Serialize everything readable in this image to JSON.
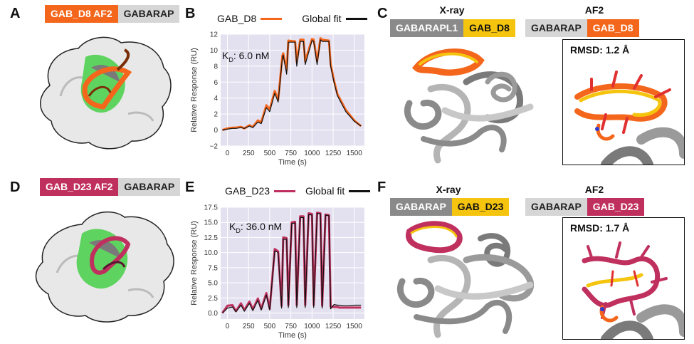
{
  "colors": {
    "orange": "#f4661b",
    "crimson": "#c0305e",
    "gold": "#f5c40f",
    "gray_tag": "#d6d6d6",
    "dark_gray_tag": "#8a8a8a",
    "plot_bg": "#e3e1f0",
    "green": "#5fd35f"
  },
  "panel_a": {
    "letter": "A",
    "tag_left": "GAB_D8 AF2",
    "tag_right": "GABARAP"
  },
  "panel_d": {
    "letter": "D",
    "tag_left": "GAB_D23 AF2",
    "tag_right": "GABARAP"
  },
  "panel_b": {
    "letter": "B",
    "legend_series": "GAB_D8",
    "legend_fit": "Global fit",
    "kd_label": "K",
    "kd_sub": "D",
    "kd_value": ": 6.0 nM"
  },
  "panel_e": {
    "letter": "E",
    "legend_series": "GAB_D23",
    "legend_fit": "Global fit",
    "kd_label": "K",
    "kd_sub": "D",
    "kd_value": ": 36.0 nM"
  },
  "panel_c": {
    "letter": "C",
    "xray_heading": "X-ray",
    "af2_heading": "AF2",
    "xray_tag_left": "GABARAPL1",
    "xray_tag_right": "GAB_D8",
    "af2_tag_left": "GABARAP",
    "af2_tag_right": "GAB_D8",
    "rmsd": "RMSD: 1.2 Å"
  },
  "panel_f": {
    "letter": "F",
    "xray_heading": "X-ray",
    "af2_heading": "AF2",
    "xray_tag_left": "GABARAP",
    "xray_tag_right": "GAB_D23",
    "af2_tag_left": "GABARAP",
    "af2_tag_right": "GAB_D23",
    "rmsd": "RMSD: 1.7 Å"
  },
  "chart_data": [
    {
      "type": "line",
      "title": "",
      "xlabel": "Time (s)",
      "ylabel": "Relative Response (RU)",
      "xlim": [
        -80,
        1620
      ],
      "ylim": [
        -2,
        12
      ],
      "xticks": [
        0,
        250,
        500,
        750,
        1000,
        1250,
        1500
      ],
      "yticks": [
        -2,
        0,
        2,
        4,
        6,
        8,
        10,
        12
      ],
      "ytick_labels": [
        "−2",
        "0",
        "2",
        "4",
        "6",
        "8",
        "10",
        "12"
      ],
      "annotation": "KD: 6.0 nM",
      "series": [
        {
          "name": "GAB_D8",
          "x": [
            -60,
            0,
            60,
            100,
            160,
            200,
            260,
            300,
            360,
            400,
            460,
            500,
            560,
            600,
            650,
            660,
            700,
            720,
            800,
            820,
            860,
            900,
            920,
            1000,
            1020,
            1060,
            1100,
            1120,
            1200,
            1220,
            1260,
            1300,
            1400,
            1500,
            1580
          ],
          "y": [
            0,
            0.2,
            0.3,
            0.3,
            0.4,
            0.2,
            0.6,
            0.4,
            1.2,
            1.0,
            3.1,
            2.6,
            4.9,
            3.8,
            9.3,
            9.6,
            7.5,
            11.2,
            11.1,
            8.5,
            11.3,
            11.3,
            8.6,
            11.4,
            11.3,
            8.6,
            11.5,
            11.3,
            11.2,
            8.3,
            6.2,
            4.5,
            2.5,
            1.2,
            0.5
          ]
        },
        {
          "name": "Global fit",
          "x": [
            -60,
            0,
            60,
            100,
            160,
            200,
            260,
            300,
            360,
            400,
            460,
            500,
            560,
            600,
            650,
            660,
            700,
            720,
            800,
            820,
            860,
            900,
            920,
            1000,
            1020,
            1060,
            1100,
            1120,
            1200,
            1220,
            1260,
            1300,
            1400,
            1500,
            1580
          ],
          "y": [
            0,
            0.1,
            0.2,
            0.2,
            0.3,
            0.2,
            0.5,
            0.3,
            1.0,
            0.8,
            2.8,
            2.3,
            4.6,
            3.5,
            9.0,
            9.4,
            7.0,
            11.0,
            11.0,
            8.0,
            11.1,
            11.1,
            8.2,
            11.2,
            11.1,
            8.2,
            11.3,
            11.1,
            11.1,
            8.0,
            6.0,
            4.3,
            2.3,
            1.1,
            0.5
          ]
        }
      ]
    },
    {
      "type": "line",
      "title": "",
      "xlabel": "Time (s)",
      "ylabel": "Relative Response (RU)",
      "xlim": [
        -80,
        1620
      ],
      "ylim": [
        -1,
        17.5
      ],
      "xticks": [
        0,
        250,
        500,
        750,
        1000,
        1250,
        1500
      ],
      "yticks": [
        0,
        2.5,
        5,
        7.5,
        10,
        12.5,
        15,
        17.5
      ],
      "ytick_labels": [
        "0.0",
        "2.5",
        "5.0",
        "7.5",
        "10.0",
        "12.5",
        "15.0",
        "17.5"
      ],
      "annotation": "KD: 36.0 nM",
      "series": [
        {
          "name": "GAB_D23",
          "x": [
            -60,
            0,
            60,
            100,
            160,
            200,
            260,
            300,
            360,
            400,
            460,
            500,
            560,
            600,
            640,
            660,
            700,
            720,
            760,
            800,
            820,
            860,
            900,
            920,
            960,
            1000,
            1020,
            1060,
            1100,
            1120,
            1160,
            1200,
            1220,
            1260,
            1300,
            1320,
            1400,
            1500,
            1580
          ],
          "y": [
            0,
            1.2,
            1.3,
            0.3,
            1.6,
            0.5,
            1.9,
            0.6,
            2.4,
            0.7,
            3.3,
            0.7,
            10.6,
            10.2,
            1.2,
            12.5,
            12.4,
            1.3,
            15.0,
            15.1,
            1.3,
            16.0,
            16.0,
            1.3,
            16.5,
            16.4,
            1.3,
            16.6,
            16.5,
            1.2,
            16.3,
            16.2,
            1.1,
            1.0,
            1.0,
            0.9,
            0.9,
            0.9,
            0.9
          ]
        },
        {
          "name": "Global fit",
          "x": [
            -60,
            0,
            60,
            100,
            160,
            200,
            260,
            300,
            360,
            400,
            460,
            500,
            560,
            600,
            640,
            660,
            700,
            720,
            760,
            800,
            820,
            860,
            900,
            920,
            960,
            1000,
            1020,
            1060,
            1100,
            1120,
            1160,
            1200,
            1220,
            1260,
            1300,
            1320,
            1400,
            1500,
            1580
          ],
          "y": [
            0,
            0.8,
            1.0,
            0.2,
            1.3,
            0.3,
            1.6,
            0.4,
            2.1,
            0.5,
            3.0,
            0.5,
            10.3,
            10.0,
            0.8,
            12.2,
            12.2,
            0.9,
            14.8,
            14.9,
            0.9,
            15.8,
            15.8,
            0.9,
            16.3,
            16.2,
            0.9,
            16.5,
            16.4,
            0.8,
            16.2,
            16.1,
            0.7,
            1.4,
            1.3,
            1.3,
            1.2,
            1.3,
            1.3
          ]
        }
      ]
    }
  ]
}
